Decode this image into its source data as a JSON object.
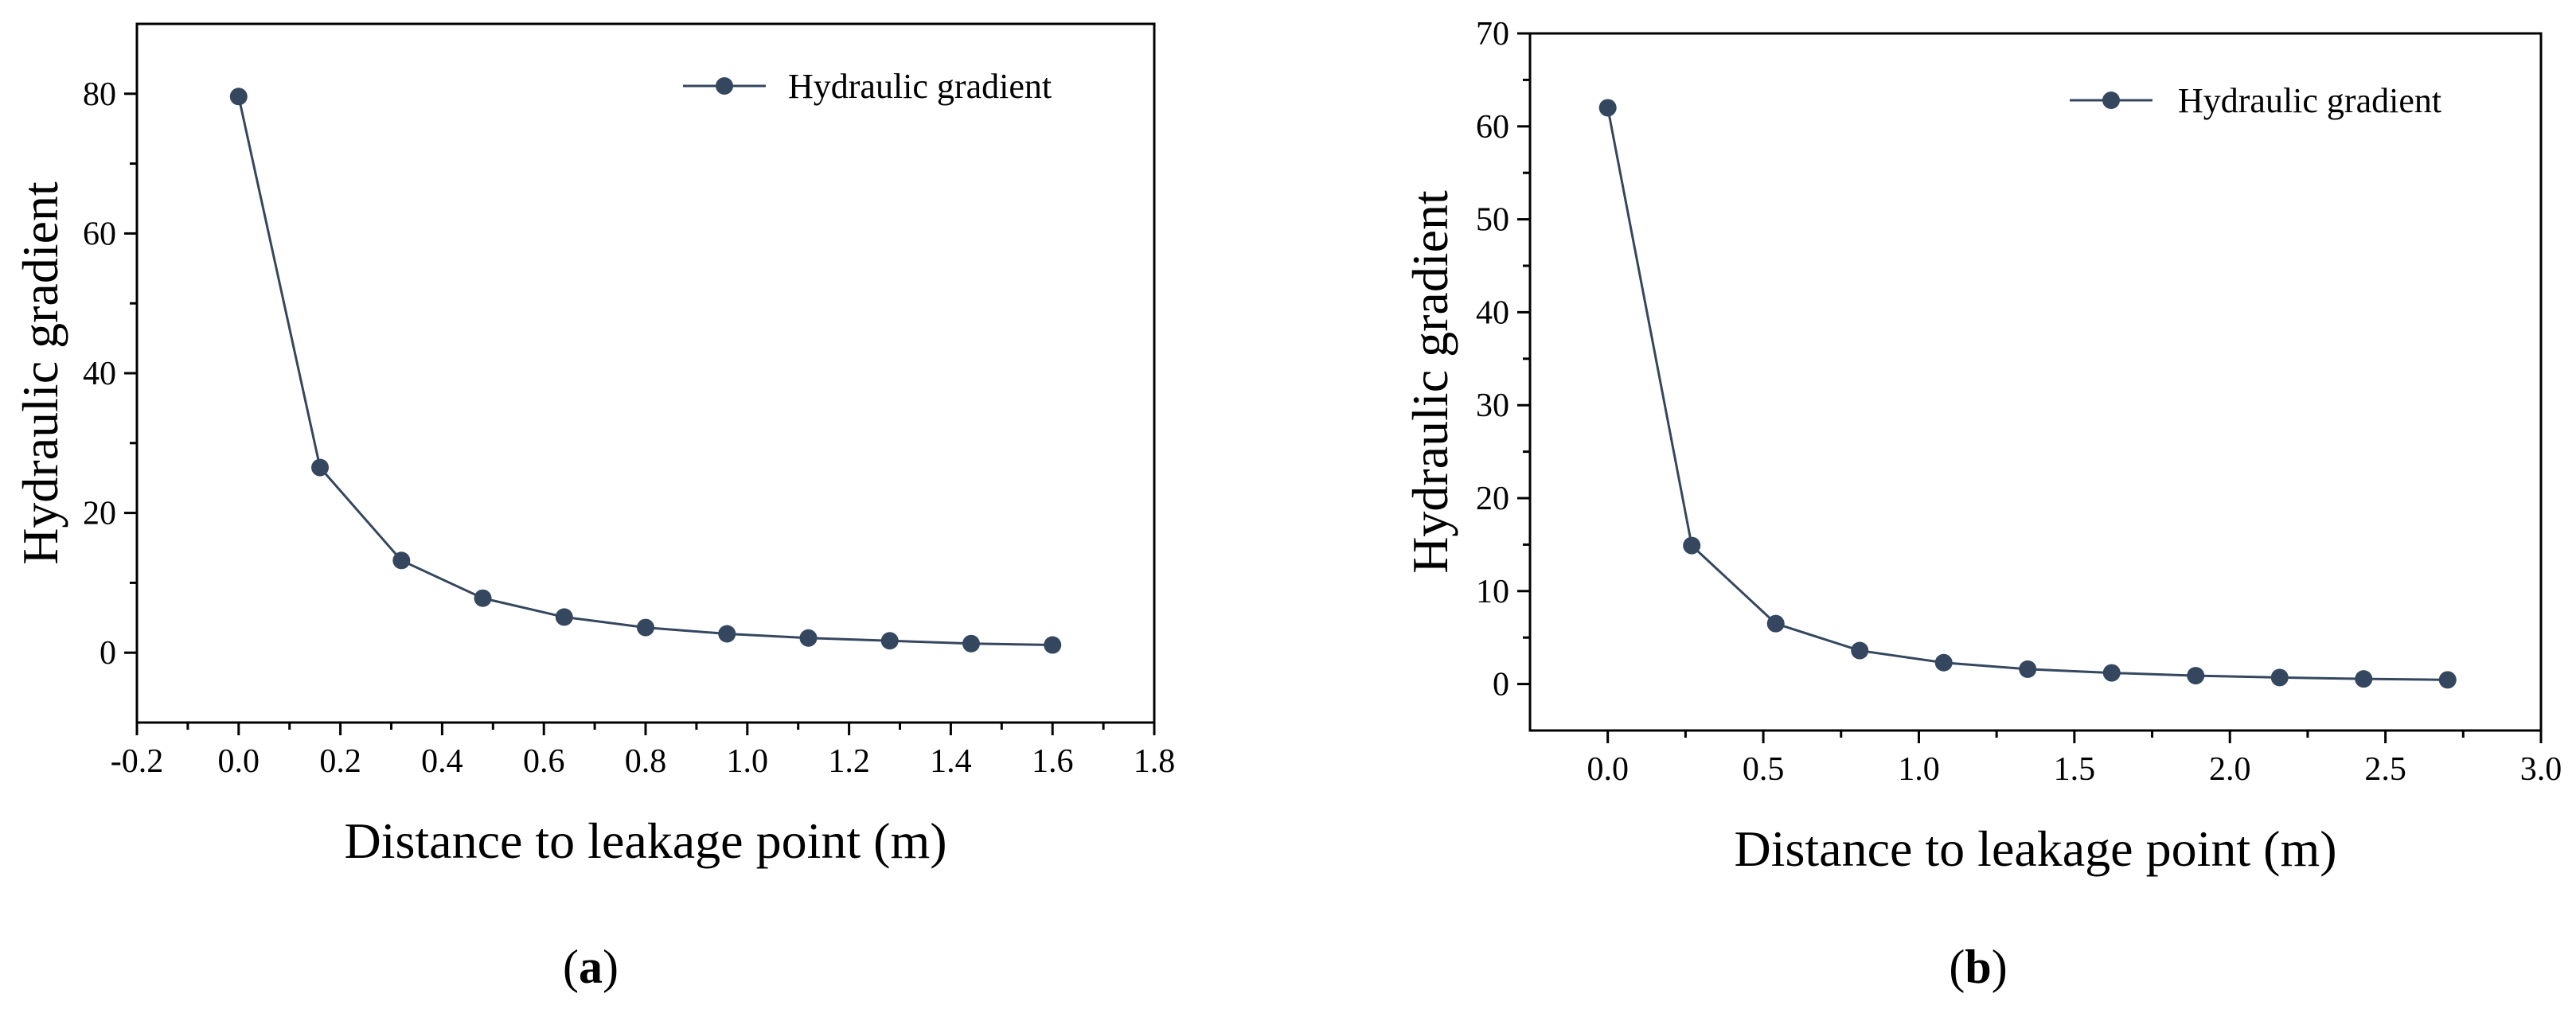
{
  "chart_data": [
    {
      "id": "a",
      "type": "line",
      "panel_label": "a",
      "xlabel": "Distance to leakage point (m)",
      "ylabel": "Hydraulic gradient",
      "xlim": [
        -0.2,
        1.8
      ],
      "ylim": [
        -10,
        90
      ],
      "xticks": [
        -0.2,
        0.0,
        0.2,
        0.4,
        0.6,
        0.8,
        1.0,
        1.2,
        1.4,
        1.6,
        1.8
      ],
      "xtick_labels": [
        "-0.2",
        "0.0",
        "0.2",
        "0.4",
        "0.6",
        "0.8",
        "1.0",
        "1.2",
        "1.4",
        "1.6",
        "1.8"
      ],
      "yticks": [
        0,
        20,
        40,
        60,
        80
      ],
      "ytick_labels": [
        "0",
        "20",
        "40",
        "60",
        "80"
      ],
      "legend": {
        "label": "Hydraulic gradient",
        "position": "top-right"
      },
      "series": [
        {
          "name": "Hydraulic gradient",
          "color": "#34475f",
          "x": [
            0.0,
            0.16,
            0.32,
            0.48,
            0.64,
            0.8,
            0.96,
            1.12,
            1.28,
            1.44,
            1.6
          ],
          "y": [
            79.6,
            26.5,
            13.2,
            7.8,
            5.1,
            3.6,
            2.7,
            2.1,
            1.7,
            1.3,
            1.1
          ]
        }
      ]
    },
    {
      "id": "b",
      "type": "line",
      "panel_label": "b",
      "xlabel": "Distance to leakage point (m)",
      "ylabel": "Hydraulic gradient",
      "xlim": [
        -0.25,
        3.0
      ],
      "ylim": [
        -5,
        70
      ],
      "xticks": [
        0.0,
        0.5,
        1.0,
        1.5,
        2.0,
        2.5,
        3.0
      ],
      "xtick_labels": [
        "0.0",
        "0.5",
        "1.0",
        "1.5",
        "2.0",
        "2.5",
        "3.0"
      ],
      "yticks": [
        0,
        10,
        20,
        30,
        40,
        50,
        60,
        70
      ],
      "ytick_labels": [
        "0",
        "10",
        "20",
        "30",
        "40",
        "50",
        "60",
        "70"
      ],
      "legend": {
        "label": "Hydraulic gradient",
        "position": "top-right"
      },
      "series": [
        {
          "name": "Hydraulic gradient",
          "color": "#34475f",
          "x": [
            0.0,
            0.27,
            0.54,
            0.81,
            1.08,
            1.35,
            1.62,
            1.89,
            2.16,
            2.43,
            2.7
          ],
          "y": [
            62.0,
            14.9,
            6.5,
            3.6,
            2.3,
            1.6,
            1.2,
            0.9,
            0.7,
            0.55,
            0.45
          ]
        }
      ]
    }
  ]
}
